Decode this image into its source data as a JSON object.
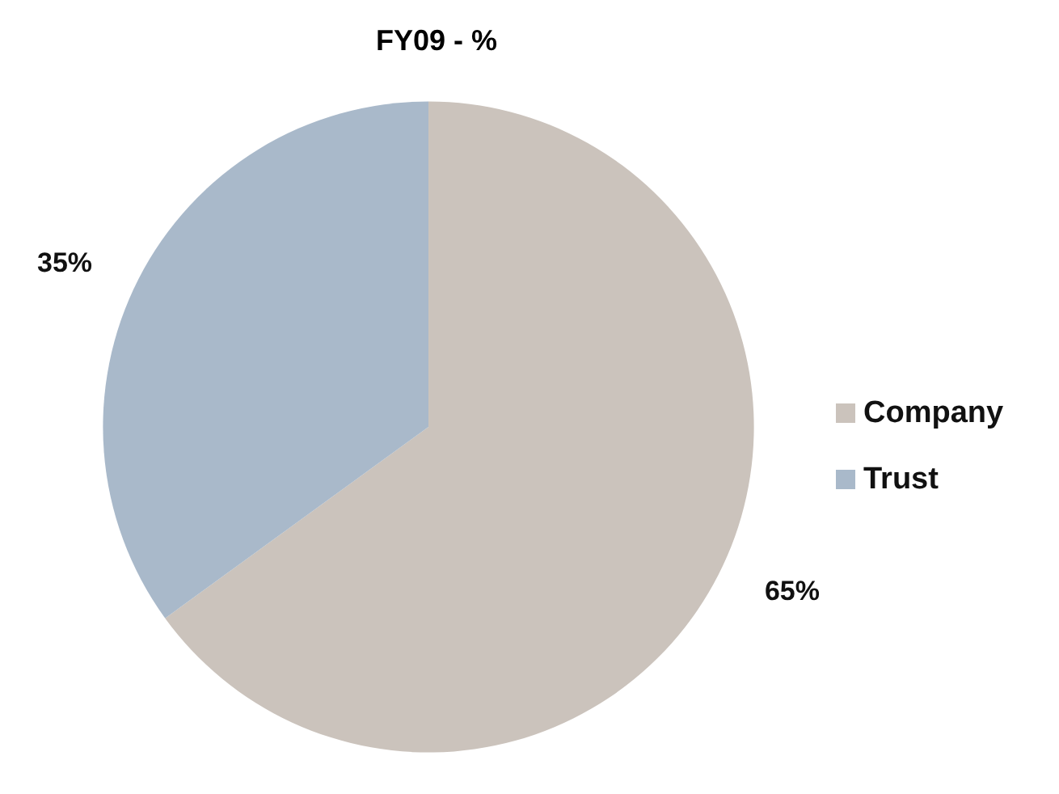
{
  "chart_data": {
    "type": "pie",
    "title": "FY09 - %",
    "categories": [
      "Company",
      "Trust"
    ],
    "values": [
      65,
      35
    ],
    "colors": [
      "#cbc3bc",
      "#a9b9ca"
    ],
    "value_labels": [
      "65%",
      "35%"
    ],
    "legend": "right"
  }
}
